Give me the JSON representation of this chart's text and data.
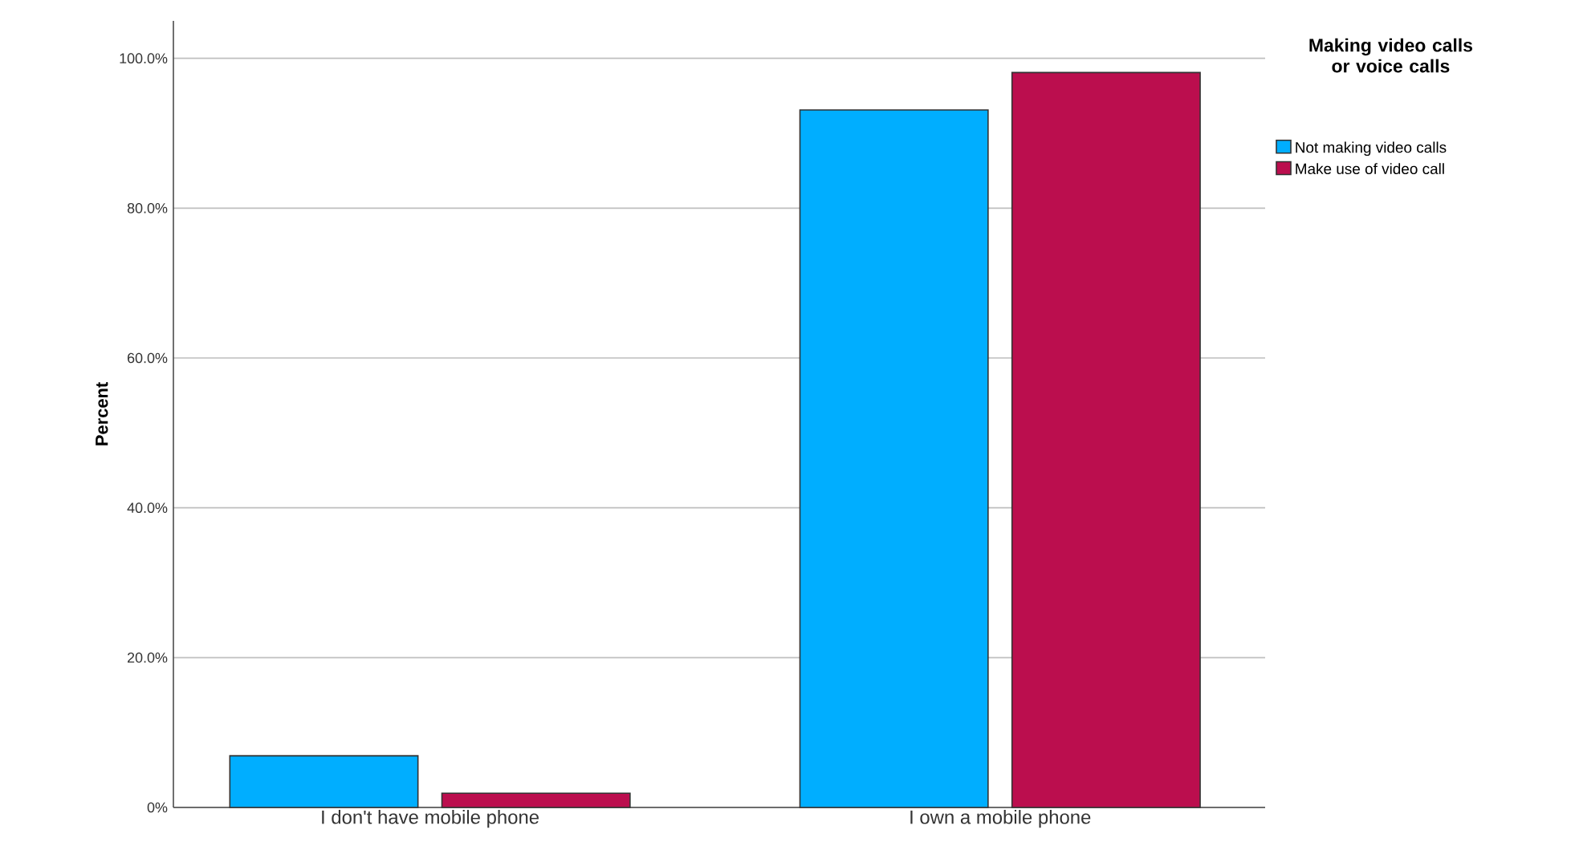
{
  "chart_data": {
    "type": "bar",
    "ylabel": "Percent",
    "legend_title": "Making video calls or voice calls",
    "categories": [
      "I don't have mobile phone",
      "I own a mobile phone"
    ],
    "series": [
      {
        "name": "Not making video calls",
        "color": "#00aeff",
        "values": [
          6.9,
          93.1
        ]
      },
      {
        "name": "Make use of video call",
        "color": "#bb0e4e",
        "values": [
          1.9,
          98.1
        ]
      }
    ],
    "ylim": [
      0,
      105
    ],
    "yticks": [
      {
        "value": 0,
        "label": "0%"
      },
      {
        "value": 20,
        "label": "20.0%"
      },
      {
        "value": 40,
        "label": "40.0%"
      },
      {
        "value": 60,
        "label": "60.0%"
      },
      {
        "value": 80,
        "label": "80.0%"
      },
      {
        "value": 100,
        "label": "100.0%"
      }
    ],
    "grid": "y",
    "legend": "right"
  }
}
